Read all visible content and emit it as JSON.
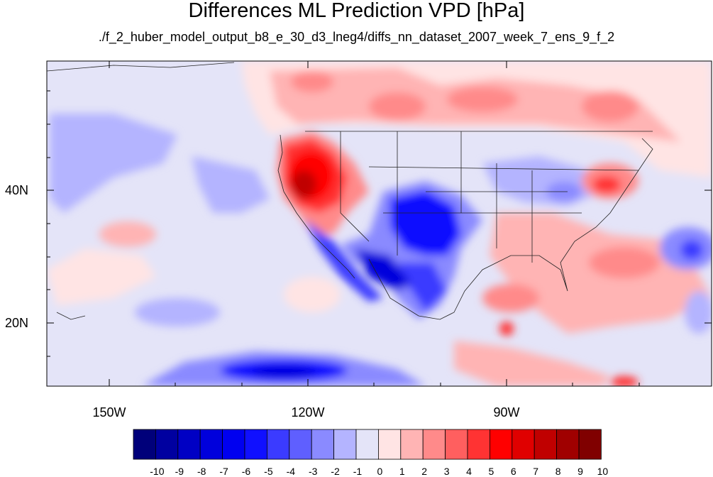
{
  "title": "Differences ML Prediction VPD [hPa]",
  "subtitle": "./f_2_huber_model_output_b8_e_30_d3_lneg4/diffs_nn_dataset_2007_week_7_ens_9_f_2",
  "lat_labels": [
    "40N",
    "20N"
  ],
  "lon_labels": [
    "150W",
    "120W",
    "90W"
  ],
  "colorbar": {
    "labels": [
      "-10",
      "-9",
      "-8",
      "-7",
      "-6",
      "-5",
      "-4",
      "-3",
      "-2",
      "-1",
      "0",
      "1",
      "2",
      "3",
      "4",
      "5",
      "6",
      "7",
      "8",
      "9",
      "10"
    ],
    "colors": [
      "#00007a",
      "#0000a0",
      "#0000c4",
      "#0000dc",
      "#0000f0",
      "#1010ff",
      "#3b3bff",
      "#5f5fff",
      "#8a8aff",
      "#b4b4ff",
      "#e4e4f8",
      "#ffe4e4",
      "#ffb4b4",
      "#ff8a8a",
      "#ff5f5f",
      "#ff3333",
      "#ff0000",
      "#e00000",
      "#c00000",
      "#a00000",
      "#800000"
    ]
  }
}
